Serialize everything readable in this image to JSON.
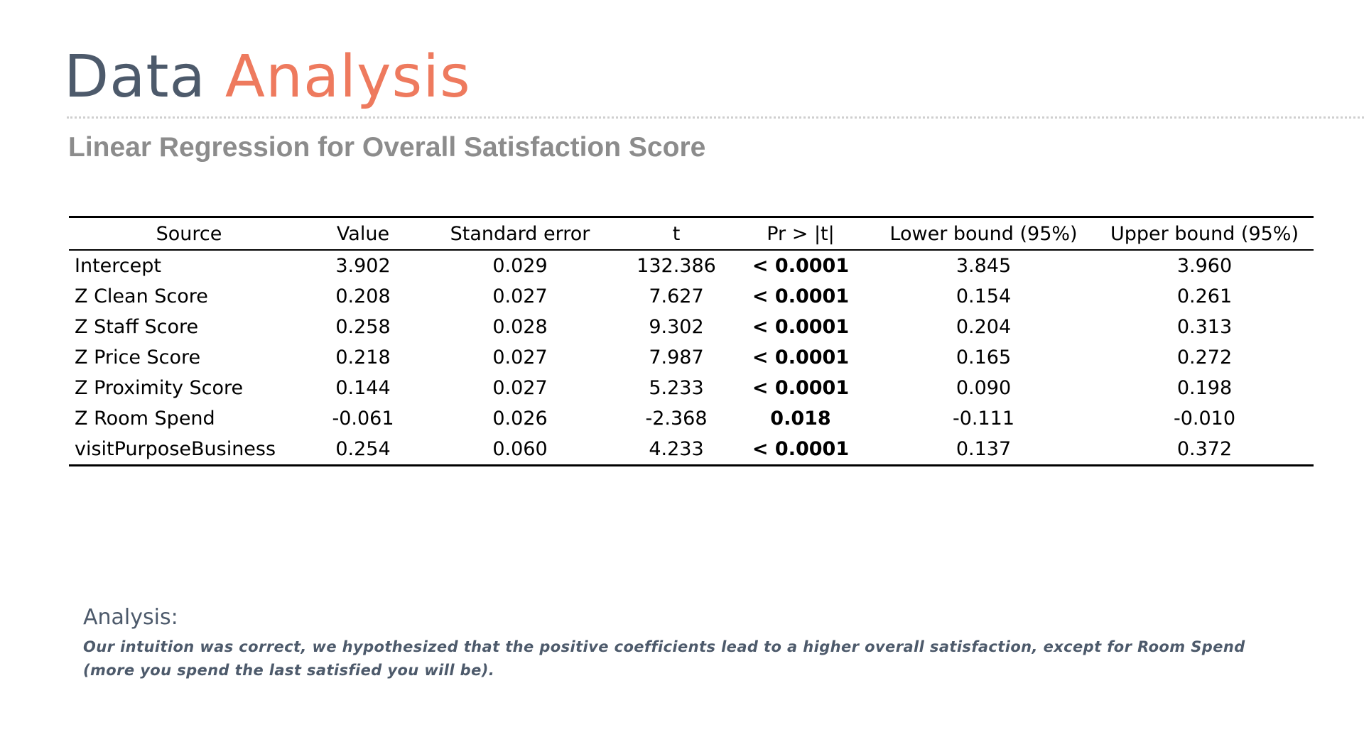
{
  "header": {
    "title_part1": "Data",
    "title_part2": "Analysis",
    "subtitle": "Linear Regression for Overall Satisfaction Score"
  },
  "table": {
    "columns": [
      "Source",
      "Value",
      "Standard error",
      "t",
      "Pr > |t|",
      "Lower bound (95%)",
      "Upper bound (95%)"
    ],
    "rows": [
      [
        "Intercept",
        "3.902",
        "0.029",
        "132.386",
        "< 0.0001",
        "3.845",
        "3.960"
      ],
      [
        "Z Clean Score",
        "0.208",
        "0.027",
        "7.627",
        "< 0.0001",
        "0.154",
        "0.261"
      ],
      [
        "Z Staff Score",
        "0.258",
        "0.028",
        "9.302",
        "< 0.0001",
        "0.204",
        "0.313"
      ],
      [
        "Z Price Score",
        "0.218",
        "0.027",
        "7.987",
        "< 0.0001",
        "0.165",
        "0.272"
      ],
      [
        "Z Proximity Score",
        "0.144",
        "0.027",
        "5.233",
        "< 0.0001",
        "0.090",
        "0.198"
      ],
      [
        "Z Room Spend",
        "-0.061",
        "0.026",
        "-2.368",
        "0.018",
        "-0.111",
        "-0.010"
      ],
      [
        "visitPurposeBusiness",
        "0.254",
        "0.060",
        "4.233",
        "< 0.0001",
        "0.137",
        "0.372"
      ]
    ]
  },
  "analysis": {
    "label": "Analysis:",
    "line1": "Our intuition was correct, we hypothesized that the positive coefficients lead to a higher overall satisfaction, except for Room Spend",
    "line2": "(more you spend the last satisfied you will be)."
  },
  "colors": {
    "title_primary": "#4d5a6b",
    "title_accent": "#ee7a5e",
    "subtitle": "#8c8c8c"
  }
}
